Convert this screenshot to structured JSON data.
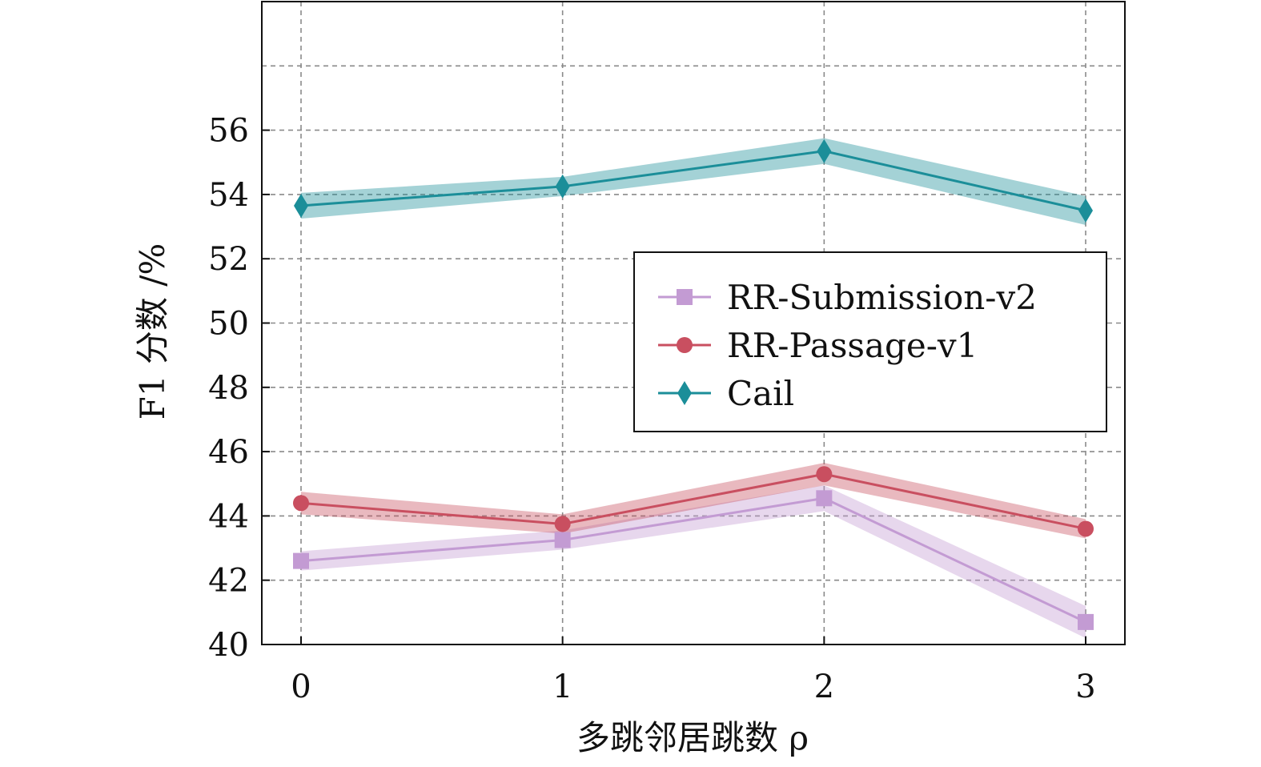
{
  "chart_data": {
    "type": "line",
    "x": [
      0,
      1,
      2,
      3
    ],
    "xticks": [
      "0",
      "1",
      "2",
      "3"
    ],
    "yticks": [
      "40",
      "42",
      "44",
      "46",
      "48",
      "50",
      "52",
      "54",
      "56"
    ],
    "xlabel": "多跳邻居跳数 ρ",
    "ylabel": "F1 分数 /%",
    "ylim": [
      40,
      60
    ],
    "xlim": [
      -0.15,
      3.15
    ],
    "grid": true,
    "legend_position": "center-right",
    "series": [
      {
        "name": "RR-Submission-v2",
        "color": "#c39bd3",
        "marker": "square",
        "values": [
          42.6,
          43.25,
          44.55,
          40.7
        ],
        "band_lower": [
          42.3,
          42.95,
          44.15,
          40.2
        ],
        "band_upper": [
          42.9,
          43.55,
          44.95,
          41.2
        ]
      },
      {
        "name": "RR-Passage-v1",
        "color": "#c94f60",
        "marker": "circle",
        "values": [
          44.4,
          43.75,
          45.3,
          43.6
        ],
        "band_lower": [
          44.05,
          43.45,
          44.95,
          43.3
        ],
        "band_upper": [
          44.75,
          44.05,
          45.65,
          43.9
        ]
      },
      {
        "name": "Cail",
        "color": "#1b8e99",
        "marker": "diamond",
        "values": [
          53.65,
          54.25,
          55.35,
          53.5
        ],
        "band_lower": [
          53.25,
          53.95,
          54.95,
          53.05
        ],
        "band_upper": [
          54.05,
          54.55,
          55.75,
          53.95
        ]
      }
    ]
  }
}
